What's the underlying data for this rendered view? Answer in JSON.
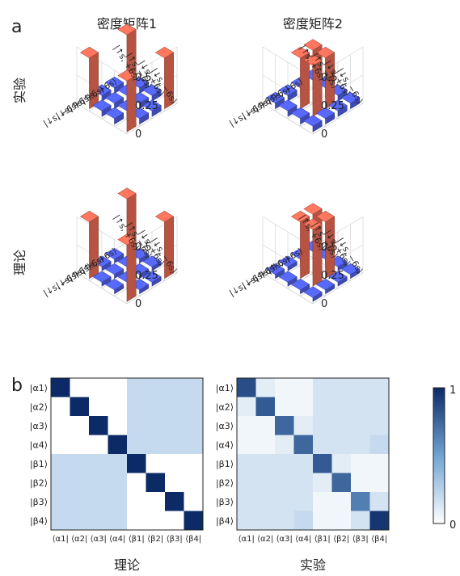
{
  "panel_a": {
    "label": "a",
    "col_titles": [
      "密度矩阵1",
      "密度矩阵2"
    ],
    "row_titles": [
      "实验",
      "理论"
    ],
    "z_ticks": [
      "0.5",
      "0.25",
      "0"
    ],
    "basis_labels": [
      "|↑s, +6s⟩",
      "|↑s, −6s⟩",
      "|↓s, +6s⟩",
      "|↓s, −6s⟩"
    ],
    "right_axis_labels": [
      "|↓s, −6s⟩",
      "|↓s, +6s⟩",
      "|↑s, −6s⟩",
      "|↑s, +6s⟩"
    ]
  },
  "panel_b": {
    "label": "b",
    "titles": [
      "理论",
      "实验"
    ],
    "row_labels": [
      "|α1⟩",
      "|α2⟩",
      "|α3⟩",
      "|α4⟩",
      "|β1⟩",
      "|β2⟩",
      "|β3⟩",
      "|β4⟩"
    ],
    "col_labels": [
      "⟨α1|",
      "⟨α2|",
      "⟨α3|",
      "⟨α4|",
      "⟨β1|",
      "⟨β2|",
      "⟨β3|",
      "⟨β4|"
    ],
    "colorbar_max": "1",
    "colorbar_min": "0"
  },
  "colors": {
    "bar_high": "#ea6a55",
    "bar_low": "#4f5fe3",
    "heat_low": "#ffffff",
    "heat_high": "#0b2a66"
  },
  "chart_data": [
    {
      "type": "bar3d",
      "name": "密度矩阵1 实验",
      "zlim": [
        0,
        0.5
      ],
      "values": [
        [
          0.45,
          0.05,
          0.05,
          0.45
        ],
        [
          0.05,
          0.05,
          0.05,
          0.05
        ],
        [
          0.05,
          0.05,
          0.05,
          0.05
        ],
        [
          0.45,
          0.05,
          0.05,
          0.45
        ]
      ]
    },
    {
      "type": "bar3d",
      "name": "密度矩阵2 实验",
      "zlim": [
        0,
        0.5
      ],
      "values": [
        [
          0.05,
          0.05,
          0.05,
          0.05
        ],
        [
          0.05,
          0.45,
          0.45,
          0.05
        ],
        [
          0.05,
          0.45,
          0.45,
          0.05
        ],
        [
          0.05,
          0.05,
          0.05,
          0.05
        ]
      ]
    },
    {
      "type": "bar3d",
      "name": "密度矩阵1 理论",
      "zlim": [
        0,
        0.5
      ],
      "values": [
        [
          0.5,
          0,
          0,
          0.5
        ],
        [
          0,
          0,
          0,
          0
        ],
        [
          0,
          0,
          0,
          0
        ],
        [
          0.5,
          0,
          0,
          0.5
        ]
      ]
    },
    {
      "type": "bar3d",
      "name": "密度矩阵2 理论",
      "zlim": [
        0,
        0.5
      ],
      "values": [
        [
          0,
          0,
          0,
          0
        ],
        [
          0,
          0.5,
          0.5,
          0
        ],
        [
          0,
          0.5,
          0.5,
          0
        ],
        [
          0,
          0,
          0,
          0
        ]
      ]
    },
    {
      "type": "heatmap",
      "name": "理论",
      "range": [
        0,
        1
      ],
      "values": [
        [
          1,
          0,
          0,
          0,
          0.2,
          0.2,
          0.2,
          0.2
        ],
        [
          0,
          1,
          0,
          0,
          0.2,
          0.2,
          0.2,
          0.2
        ],
        [
          0,
          0,
          1,
          0,
          0.2,
          0.2,
          0.2,
          0.2
        ],
        [
          0,
          0,
          0,
          1,
          0.2,
          0.2,
          0.2,
          0.2
        ],
        [
          0.2,
          0.2,
          0.2,
          0.2,
          1,
          0,
          0,
          0
        ],
        [
          0.2,
          0.2,
          0.2,
          0.2,
          0,
          1,
          0,
          0
        ],
        [
          0.2,
          0.2,
          0.2,
          0.2,
          0,
          0,
          1,
          0
        ],
        [
          0.2,
          0.2,
          0.2,
          0.2,
          0,
          0,
          0,
          1
        ]
      ]
    },
    {
      "type": "heatmap",
      "name": "实验",
      "range": [
        0,
        1
      ],
      "values": [
        [
          0.85,
          0.1,
          0.05,
          0.05,
          0.15,
          0.15,
          0.15,
          0.15
        ],
        [
          0.1,
          0.8,
          0.05,
          0.05,
          0.15,
          0.15,
          0.15,
          0.15
        ],
        [
          0.05,
          0.05,
          0.75,
          0.1,
          0.15,
          0.15,
          0.15,
          0.15
        ],
        [
          0.05,
          0.05,
          0.1,
          0.75,
          0.15,
          0.15,
          0.15,
          0.2
        ],
        [
          0.15,
          0.15,
          0.15,
          0.15,
          0.8,
          0.1,
          0.05,
          0.05
        ],
        [
          0.15,
          0.15,
          0.15,
          0.15,
          0.1,
          0.75,
          0.05,
          0.05
        ],
        [
          0.15,
          0.15,
          0.15,
          0.15,
          0.05,
          0.05,
          0.65,
          0.15
        ],
        [
          0.15,
          0.15,
          0.15,
          0.2,
          0.05,
          0.05,
          0.15,
          0.95
        ]
      ]
    }
  ]
}
